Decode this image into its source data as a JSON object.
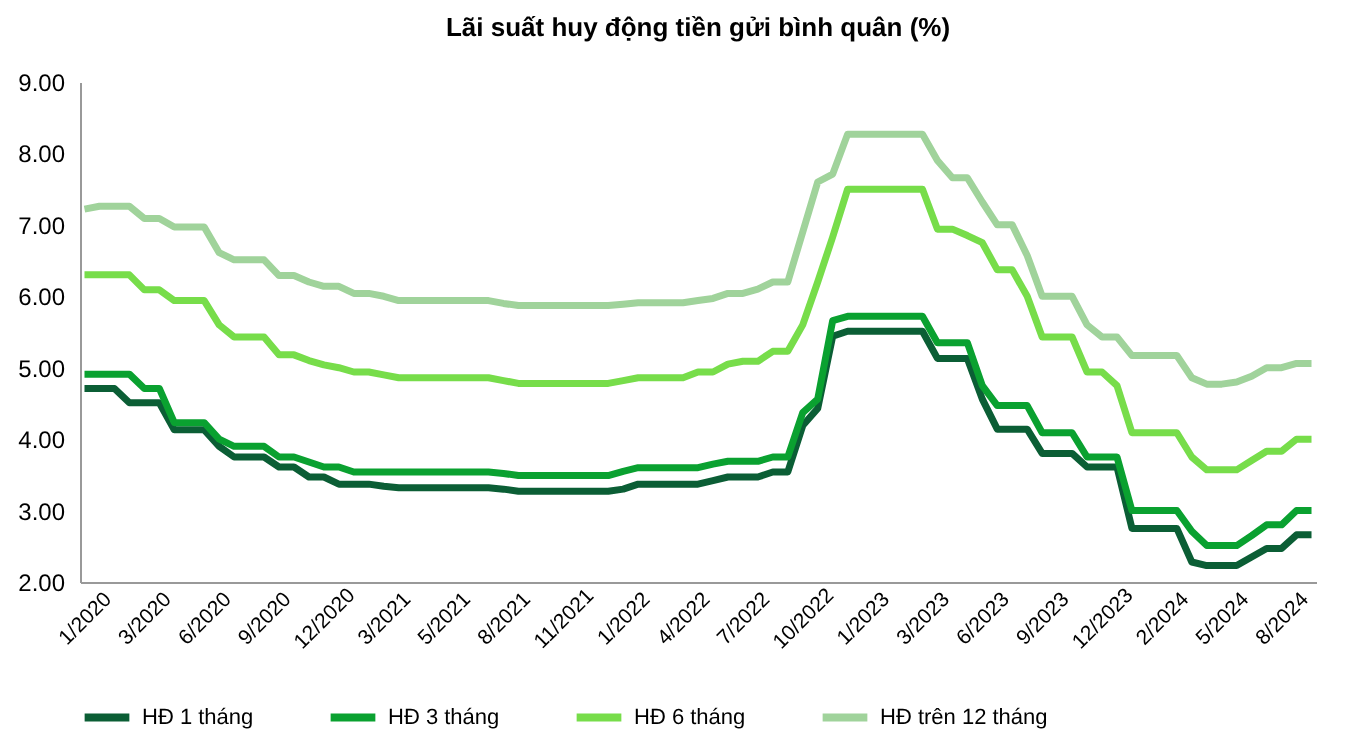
{
  "chart_data": {
    "type": "line",
    "title": "Lãi suất huy động tiền gửi bình quân (%)",
    "categories": [
      "1/2020",
      null,
      null,
      null,
      "3/2020",
      null,
      null,
      null,
      "6/2020",
      null,
      null,
      null,
      "9/2020",
      null,
      null,
      null,
      "12/2020",
      null,
      null,
      null,
      "3/2021",
      null,
      null,
      null,
      "5/2021",
      null,
      null,
      null,
      "8/2021",
      null,
      null,
      null,
      "11/2021",
      null,
      null,
      null,
      "1/2022",
      null,
      null,
      null,
      "4/2022",
      null,
      null,
      null,
      "7/2022",
      null,
      null,
      null,
      "10/2022",
      null,
      null,
      null,
      "1/2023",
      null,
      null,
      null,
      "3/2023",
      null,
      null,
      null,
      "6/2023",
      null,
      null,
      null,
      "9/2023",
      null,
      null,
      null,
      "12/2023",
      null,
      null,
      null,
      "2/2024",
      null,
      null,
      null,
      "5/2024",
      null,
      null,
      null,
      "8/2024",
      null,
      null
    ],
    "series": [
      {
        "name": "HĐ 1 tháng",
        "color": "#0b5e35",
        "values": [
          4.71,
          4.71,
          4.71,
          4.51,
          4.51,
          4.51,
          4.13,
          4.13,
          4.13,
          3.9,
          3.75,
          3.75,
          3.75,
          3.61,
          3.61,
          3.47,
          3.47,
          3.37,
          3.37,
          3.37,
          3.34,
          3.32,
          3.32,
          3.32,
          3.32,
          3.32,
          3.32,
          3.32,
          3.3,
          3.27,
          3.27,
          3.27,
          3.27,
          3.27,
          3.27,
          3.27,
          3.3,
          3.37,
          3.37,
          3.37,
          3.37,
          3.37,
          3.42,
          3.47,
          3.47,
          3.47,
          3.54,
          3.54,
          4.19,
          4.43,
          5.44,
          5.51,
          5.51,
          5.51,
          5.51,
          5.51,
          5.51,
          5.13,
          5.13,
          5.13,
          4.56,
          4.14,
          4.14,
          4.14,
          3.8,
          3.8,
          3.8,
          3.61,
          3.61,
          3.61,
          2.75,
          2.75,
          2.75,
          2.75,
          2.28,
          2.23,
          2.23,
          2.23,
          2.35,
          2.47,
          2.47,
          2.66,
          2.66
        ]
      },
      {
        "name": "HĐ 3 tháng",
        "color": "#0aa130",
        "values": [
          4.91,
          4.91,
          4.91,
          4.91,
          4.71,
          4.71,
          4.23,
          4.23,
          4.23,
          4.0,
          3.9,
          3.9,
          3.9,
          3.75,
          3.75,
          3.68,
          3.61,
          3.61,
          3.54,
          3.54,
          3.54,
          3.54,
          3.54,
          3.54,
          3.54,
          3.54,
          3.54,
          3.54,
          3.52,
          3.49,
          3.49,
          3.49,
          3.49,
          3.49,
          3.49,
          3.49,
          3.55,
          3.6,
          3.6,
          3.6,
          3.6,
          3.6,
          3.65,
          3.69,
          3.69,
          3.69,
          3.75,
          3.75,
          4.37,
          4.56,
          5.66,
          5.72,
          5.72,
          5.72,
          5.72,
          5.72,
          5.72,
          5.35,
          5.35,
          5.35,
          4.75,
          4.47,
          4.47,
          4.47,
          4.09,
          4.09,
          4.09,
          3.75,
          3.75,
          3.75,
          3.0,
          3.0,
          3.0,
          3.0,
          2.71,
          2.51,
          2.51,
          2.51,
          2.65,
          2.8,
          2.8,
          3.0,
          3.0
        ]
      },
      {
        "name": "HĐ 6 tháng",
        "color": "#77dd4a",
        "values": [
          6.3,
          6.3,
          6.3,
          6.3,
          6.09,
          6.09,
          5.94,
          5.94,
          5.94,
          5.6,
          5.43,
          5.43,
          5.43,
          5.18,
          5.18,
          5.1,
          5.04,
          5.0,
          4.94,
          4.94,
          4.9,
          4.86,
          4.86,
          4.86,
          4.86,
          4.86,
          4.86,
          4.86,
          4.82,
          4.78,
          4.78,
          4.78,
          4.78,
          4.78,
          4.78,
          4.78,
          4.82,
          4.86,
          4.86,
          4.86,
          4.86,
          4.94,
          4.94,
          5.05,
          5.09,
          5.09,
          5.23,
          5.23,
          5.6,
          6.2,
          6.83,
          7.5,
          7.5,
          7.5,
          7.5,
          7.5,
          7.5,
          6.94,
          6.94,
          6.85,
          6.75,
          6.37,
          6.37,
          6.0,
          5.43,
          5.43,
          5.43,
          4.94,
          4.94,
          4.75,
          4.09,
          4.09,
          4.09,
          4.09,
          3.75,
          3.57,
          3.57,
          3.57,
          3.7,
          3.83,
          3.83,
          4.0,
          4.0
        ]
      },
      {
        "name": "HĐ trên 12 tháng",
        "color": "#a0d39b",
        "values": [
          7.22,
          7.26,
          7.26,
          7.26,
          7.09,
          7.09,
          6.97,
          6.97,
          6.97,
          6.61,
          6.51,
          6.51,
          6.51,
          6.29,
          6.29,
          6.2,
          6.14,
          6.14,
          6.04,
          6.04,
          6.0,
          5.94,
          5.94,
          5.94,
          5.94,
          5.94,
          5.94,
          5.94,
          5.9,
          5.87,
          5.87,
          5.87,
          5.87,
          5.87,
          5.87,
          5.87,
          5.89,
          5.91,
          5.91,
          5.91,
          5.91,
          5.94,
          5.97,
          6.04,
          6.04,
          6.1,
          6.2,
          6.2,
          6.9,
          7.6,
          7.71,
          8.27,
          8.27,
          8.27,
          8.27,
          8.27,
          8.27,
          7.9,
          7.66,
          7.66,
          7.32,
          7.0,
          7.0,
          6.57,
          6.0,
          6.0,
          6.0,
          5.6,
          5.43,
          5.43,
          5.17,
          5.17,
          5.17,
          5.17,
          4.86,
          4.77,
          4.77,
          4.8,
          4.88,
          5.0,
          5.0,
          5.06,
          5.06
        ]
      }
    ],
    "ylim": [
      2,
      9
    ],
    "yticks": [
      {
        "value": 2,
        "label": "2.00"
      },
      {
        "value": 3,
        "label": "3.00"
      },
      {
        "value": 4,
        "label": "4.00"
      },
      {
        "value": 5,
        "label": "5.00"
      },
      {
        "value": 6,
        "label": "6.00"
      },
      {
        "value": 7,
        "label": "7.00"
      },
      {
        "value": 8,
        "label": "8.00"
      },
      {
        "value": 9,
        "label": "9.00"
      }
    ],
    "grid": false,
    "legend": "bottom",
    "marker": "none",
    "line_style": "solid"
  }
}
